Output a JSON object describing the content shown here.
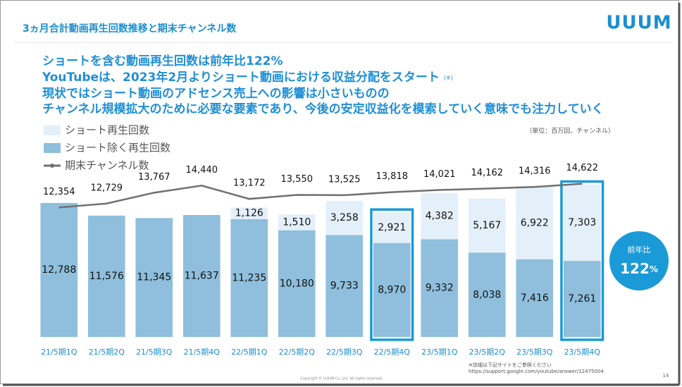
{
  "header": {
    "title": "3ヵ月合計動画再生回数推移と期末チャンネル数",
    "logo": "UUUM"
  },
  "headline": {
    "lines": [
      "ショートを含む動画再生回数は前年比122%",
      "YouTubeは、2023年2月よりショート動画における収益分配をスタート",
      "現状ではショート動画のアドセンス売上への影響は小さいものの",
      "チャンネル規模拡大のために必要な要素であり、今後の安定収益化を模索していく意味でも注力していく"
    ],
    "note": "(※)"
  },
  "chart_data": {
    "type": "bar",
    "stacked": true,
    "unit_note": "（単位：百万回、チャンネル）",
    "categories": [
      "21/5期1Q",
      "21/5期2Q",
      "21/5期3Q",
      "21/5期4Q",
      "22/5期1Q",
      "22/5期2Q",
      "22/5期3Q",
      "22/5期4Q",
      "23/5期1Q",
      "23/5期2Q",
      "23/5期3Q",
      "23/5期4Q"
    ],
    "series": [
      {
        "name": "ショート再生回数",
        "type": "bar",
        "color": "#e4f0f9",
        "values": [
          null,
          null,
          null,
          null,
          1126,
          1510,
          3258,
          2921,
          4382,
          5167,
          6922,
          7303
        ],
        "value_labels": [
          null,
          null,
          null,
          null,
          "1,126",
          "1,510",
          "3,258",
          "2,921",
          "4,382",
          "5,167",
          "6,922",
          "7,303"
        ]
      },
      {
        "name": "ショート除く再生回数",
        "type": "bar",
        "color": "#8fbfdc",
        "values": [
          12788,
          11576,
          11345,
          11637,
          11235,
          10180,
          9733,
          8970,
          9332,
          8038,
          7416,
          7261
        ],
        "value_labels": [
          "12,788",
          "11,576",
          "11,345",
          "11,637",
          "11,235",
          "10,180",
          "9,733",
          "8,970",
          "9,332",
          "8,038",
          "7,416",
          "7,261"
        ]
      },
      {
        "name": "期末チャンネル数",
        "type": "line",
        "axis": "y2",
        "color": "#707070",
        "values": [
          12354,
          12729,
          13767,
          14440,
          13172,
          13550,
          13525,
          13818,
          14021,
          14162,
          14316,
          14622
        ],
        "value_labels": [
          "12,354",
          "12,729",
          "13,767",
          "14,440",
          "13,172",
          "13,550",
          "13,525",
          "13,818",
          "14,021",
          "14,162",
          "14,316",
          "14,622"
        ]
      }
    ],
    "ylim": [
      0,
      15000
    ],
    "y2lim": [
      0,
      15000
    ],
    "highlight_index": [
      7,
      11
    ],
    "highlight_color": "#1a9ad6"
  },
  "badge": {
    "title": "前年比",
    "value": "122",
    "unit": "%"
  },
  "footnote": {
    "lines": [
      "※詳細は下記サイトをご参照ください",
      "https://support.google.com/youtube/answer/12475004"
    ],
    "copyright": "Copyright © UUUM Co.,Ltd. All rights reserved.",
    "page": "14"
  }
}
